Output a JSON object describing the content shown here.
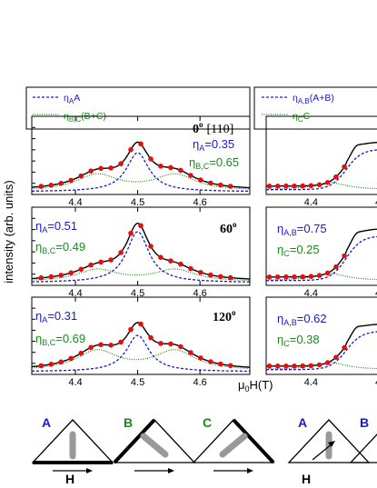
{
  "figure": {
    "ylabel": "intensity (arb. units)",
    "xlabel_main": "μ",
    "xlabel_sub": "0",
    "xlabel_rest": "H(T)",
    "colors": {
      "blue": "#1a1acc",
      "green": "#1a8a1a",
      "data": "#e01010",
      "fit": "#000000"
    }
  },
  "legends": {
    "left": {
      "blue_label": "η",
      "blue_sub": "A",
      "blue_rest": "A",
      "green_label": "η",
      "green_sub": "B,C",
      "green_rest": "(B+C)"
    },
    "right": {
      "blue_label": "η",
      "blue_sub": "A,B",
      "blue_rest": "(A+B)",
      "green_label": "η",
      "green_sub": "C",
      "green_rest": "C"
    }
  },
  "panels_left": [
    {
      "angle": "0",
      "deg": "o",
      "dir": "[110]",
      "etaA": "η",
      "etaA_sub": "A",
      "etaA_val": "=0.35",
      "etaB": "η",
      "etaB_sub": "B,C",
      "etaB_val": "=0.65"
    },
    {
      "angle": "60",
      "deg": "o",
      "dir": "",
      "etaA": "η",
      "etaA_sub": "A",
      "etaA_val": "=0.51",
      "etaB": "η",
      "etaB_sub": "B,C",
      "etaB_val": "=0.49"
    },
    {
      "angle": "120",
      "deg": "o",
      "dir": "",
      "etaA": "η",
      "etaA_sub": "A",
      "etaA_val": "=0.31",
      "etaB": "η",
      "etaB_sub": "B,C",
      "etaB_val": "=0.69"
    }
  ],
  "panels_right": [
    {
      "etaA": "",
      "etaA_sub": "",
      "etaA_val": "",
      "etaB": "",
      "etaB_sub": "",
      "etaB_val": ""
    },
    {
      "etaA": "η",
      "etaA_sub": "A,B",
      "etaA_val": "=0.75",
      "etaB": "η",
      "etaB_sub": "C",
      "etaB_val": "=0.25"
    },
    {
      "etaA": "η",
      "etaA_sub": "A,B",
      "etaA_val": "=0.62",
      "etaB": "η",
      "etaB_sub": "C",
      "etaB_val": "=0.38"
    }
  ],
  "ticks_left": [
    "4.4",
    "4.5",
    "4.6"
  ],
  "ticks_right": [
    "4.4",
    "4"
  ],
  "triangles": [
    {
      "letter": "A",
      "color": "#1a1acc",
      "field_label": "H"
    },
    {
      "letter": "B",
      "color": "#1a8a1a",
      "field_label": ""
    },
    {
      "letter": "C",
      "color": "#1a8a1a",
      "field_label": ""
    },
    {
      "letter": "A",
      "color": "#1a1acc",
      "field_label": "H"
    },
    {
      "letter": "B",
      "color": "#1a1acc",
      "field_label": ""
    }
  ],
  "chart_data": [
    {
      "type": "line",
      "title": "0° [110]",
      "xlabel": "μ0H(T)",
      "ylabel": "intensity (arb. units)",
      "xlim": [
        4.33,
        4.68
      ],
      "series": [
        {
          "name": "ηA A",
          "x": [
            4.33,
            4.4,
            4.45,
            4.48,
            4.5,
            4.52,
            4.55,
            4.6,
            4.68
          ],
          "y": [
            0.02,
            0.05,
            0.15,
            0.35,
            0.45,
            0.35,
            0.15,
            0.05,
            0.02
          ]
        },
        {
          "name": "ηB,C (B+C)",
          "x": [
            4.33,
            4.4,
            4.43,
            4.5,
            4.55,
            4.6,
            4.68
          ],
          "y": [
            0.05,
            0.2,
            0.3,
            0.26,
            0.3,
            0.2,
            0.05
          ]
        }
      ],
      "data_points": {
        "x": [
          4.35,
          4.37,
          4.39,
          4.41,
          4.43,
          4.45,
          4.47,
          4.49,
          4.5,
          4.51,
          4.53,
          4.55,
          4.57,
          4.6,
          4.62,
          4.64
        ],
        "y": [
          0.1,
          0.12,
          0.15,
          0.22,
          0.35,
          0.45,
          0.6,
          0.85,
          0.95,
          0.8,
          0.55,
          0.45,
          0.38,
          0.3,
          0.2,
          0.14
        ]
      }
    },
    {
      "type": "line",
      "title": "60°",
      "xlim": [
        4.33,
        4.68
      ],
      "series": [
        {
          "name": "ηA A",
          "x": [
            4.33,
            4.4,
            4.45,
            4.48,
            4.5,
            4.52,
            4.55,
            4.6,
            4.68
          ],
          "y": [
            0.02,
            0.06,
            0.18,
            0.45,
            0.6,
            0.45,
            0.18,
            0.06,
            0.02
          ]
        },
        {
          "name": "ηB,C (B+C)",
          "x": [
            4.33,
            4.4,
            4.43,
            4.5,
            4.55,
            4.6,
            4.68
          ],
          "y": [
            0.05,
            0.15,
            0.22,
            0.2,
            0.22,
            0.15,
            0.05
          ]
        }
      ]
    },
    {
      "type": "line",
      "title": "120°",
      "xlim": [
        4.33,
        4.68
      ],
      "series": [
        {
          "name": "ηA A",
          "x": [
            4.33,
            4.4,
            4.45,
            4.48,
            4.5,
            4.52,
            4.55,
            4.6,
            4.68
          ],
          "y": [
            0.02,
            0.05,
            0.14,
            0.32,
            0.42,
            0.32,
            0.14,
            0.05,
            0.02
          ]
        },
        {
          "name": "ηB,C (B+C)",
          "x": [
            4.33,
            4.4,
            4.43,
            4.5,
            4.55,
            4.6,
            4.68
          ],
          "y": [
            0.06,
            0.22,
            0.35,
            0.3,
            0.35,
            0.22,
            0.06
          ]
        }
      ]
    }
  ]
}
